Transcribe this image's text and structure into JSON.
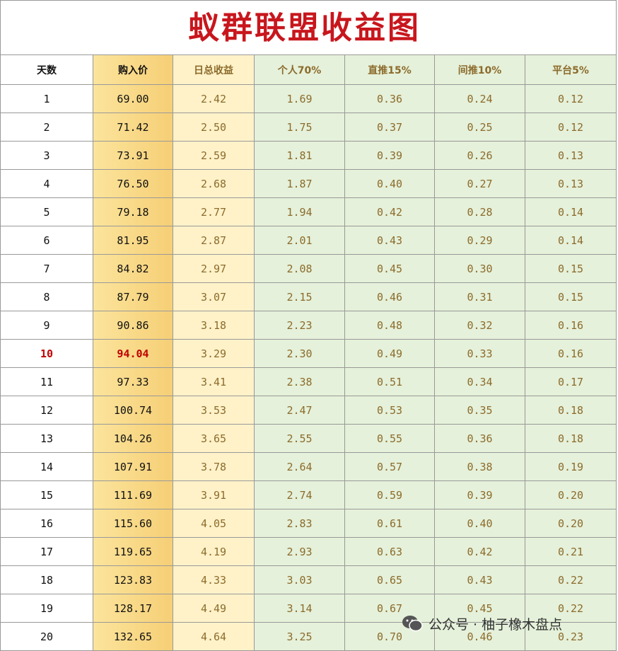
{
  "title": "蚁群联盟收益图",
  "table": {
    "header": [
      "天数",
      "购入价",
      "日总收益",
      "个人70%",
      "直推15%",
      "间推10%",
      "平台5%"
    ],
    "rows": [
      [
        "1",
        "69.00",
        "2.42",
        "1.69",
        "0.36",
        "0.24",
        "0.12"
      ],
      [
        "2",
        "71.42",
        "2.50",
        "1.75",
        "0.37",
        "0.25",
        "0.12"
      ],
      [
        "3",
        "73.91",
        "2.59",
        "1.81",
        "0.39",
        "0.26",
        "0.13"
      ],
      [
        "4",
        "76.50",
        "2.68",
        "1.87",
        "0.40",
        "0.27",
        "0.13"
      ],
      [
        "5",
        "79.18",
        "2.77",
        "1.94",
        "0.42",
        "0.28",
        "0.14"
      ],
      [
        "6",
        "81.95",
        "2.87",
        "2.01",
        "0.43",
        "0.29",
        "0.14"
      ],
      [
        "7",
        "84.82",
        "2.97",
        "2.08",
        "0.45",
        "0.30",
        "0.15"
      ],
      [
        "8",
        "87.79",
        "3.07",
        "2.15",
        "0.46",
        "0.31",
        "0.15"
      ],
      [
        "9",
        "90.86",
        "3.18",
        "2.23",
        "0.48",
        "0.32",
        "0.16"
      ],
      [
        "10",
        "94.04",
        "3.29",
        "2.30",
        "0.49",
        "0.33",
        "0.16"
      ],
      [
        "11",
        "97.33",
        "3.41",
        "2.38",
        "0.51",
        "0.34",
        "0.17"
      ],
      [
        "12",
        "100.74",
        "3.53",
        "2.47",
        "0.53",
        "0.35",
        "0.18"
      ],
      [
        "13",
        "104.26",
        "3.65",
        "2.55",
        "0.55",
        "0.36",
        "0.18"
      ],
      [
        "14",
        "107.91",
        "3.78",
        "2.64",
        "0.57",
        "0.38",
        "0.19"
      ],
      [
        "15",
        "111.69",
        "3.91",
        "2.74",
        "0.59",
        "0.39",
        "0.20"
      ],
      [
        "16",
        "115.60",
        "4.05",
        "2.83",
        "0.61",
        "0.40",
        "0.20"
      ],
      [
        "17",
        "119.65",
        "4.19",
        "2.93",
        "0.63",
        "0.42",
        "0.21"
      ],
      [
        "18",
        "123.83",
        "4.33",
        "3.03",
        "0.65",
        "0.43",
        "0.22"
      ],
      [
        "19",
        "128.17",
        "4.49",
        "3.14",
        "0.67",
        "0.45",
        "0.22"
      ],
      [
        "20",
        "132.65",
        "4.64",
        "3.25",
        "0.70",
        "0.46",
        "0.23"
      ]
    ]
  },
  "watermark": "公众号 · 柚子橡木盘点"
}
